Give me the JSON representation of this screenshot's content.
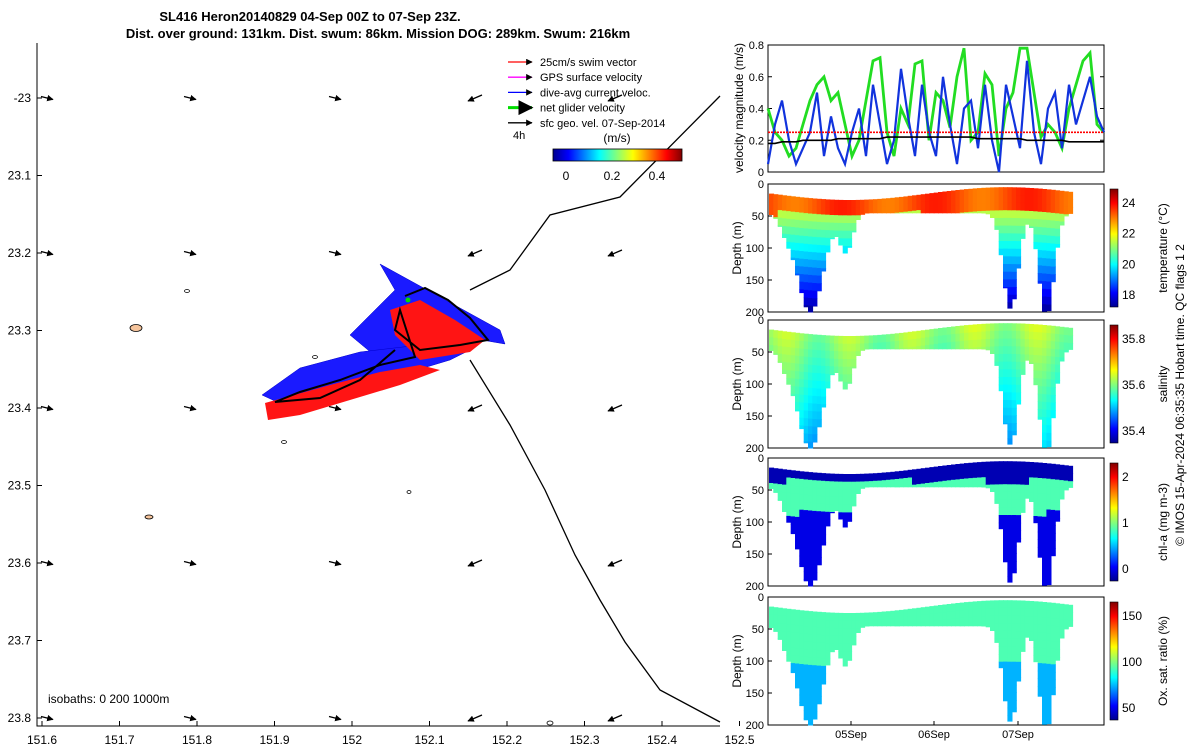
{
  "title": {
    "line1": "SL416 Heron20140829 04-Sep 00Z to 07-Sep 23Z.",
    "line2": "Dist. over ground: 131km. Dist. swum: 86km. Mission DOG: 289km. Swum: 216km"
  },
  "map": {
    "x_ticks": [
      "151.6",
      "151.7",
      "151.8",
      "151.9",
      "152",
      "152.1",
      "152.2",
      "152.3",
      "152.4",
      "152.5"
    ],
    "y_ticks": [
      "-23",
      "23.1",
      "23.2",
      "23.3",
      "23.4",
      "23.5",
      "23.6",
      "23.7",
      "23.8"
    ],
    "isobaths_label": "isobaths: 0   200  1000m",
    "legend": [
      {
        "label": "25cm/s swim vector",
        "color": "#ff0000"
      },
      {
        "label": "GPS surface velocity",
        "color": "#ff00ff"
      },
      {
        "label": "dive-avg current veloc.",
        "color": "#0000ff"
      },
      {
        "label": "net glider velocity",
        "color": "#00dd00"
      },
      {
        "label": "sfc geo. vel. 07-Sep-2014",
        "color": "#000000"
      }
    ],
    "time_step_label": "4h",
    "colorbar_label": "(m/s)",
    "colorbar_ticks": [
      "0",
      "0.2",
      "0.4"
    ]
  },
  "chart_data": [
    {
      "type": "line",
      "title": "",
      "ylabel": "velocity magnitude (m/s)",
      "ylim": [
        0,
        0.8
      ],
      "y_ticks": [
        "0",
        "0.2",
        "0.4",
        "0.6",
        "0.8"
      ],
      "series": [
        {
          "name": "net glider velocity",
          "color": "#22dd22",
          "values": [
            0.4,
            0.25,
            0.2,
            0.1,
            0.15,
            0.3,
            0.45,
            0.55,
            0.6,
            0.45,
            0.5,
            0.3,
            0.1,
            0.2,
            0.45,
            0.7,
            0.72,
            0.25,
            0.1,
            0.4,
            0.3,
            0.68,
            0.7,
            0.2,
            0.5,
            0.45,
            0.28,
            0.6,
            0.78,
            0.2,
            0.25,
            0.62,
            0.55,
            0.1,
            0.4,
            0.5,
            0.78,
            0.78,
            0.5,
            0.22,
            0.3,
            0.25,
            0.15,
            0.4,
            0.55,
            0.7,
            0.75,
            0.3,
            0.25
          ]
        },
        {
          "name": "dive-avg current veloc.",
          "color": "#1133dd",
          "values": [
            0.05,
            0.3,
            0.45,
            0.2,
            0.05,
            0.15,
            0.25,
            0.5,
            0.1,
            0.35,
            0.15,
            0.05,
            0.25,
            0.4,
            0.1,
            0.55,
            0.3,
            0.05,
            0.2,
            0.65,
            0.35,
            0.1,
            0.55,
            0.25,
            0.1,
            0.6,
            0.3,
            0.05,
            0.4,
            0.45,
            0.15,
            0.55,
            0.2,
            0.0,
            0.55,
            0.35,
            0.15,
            0.7,
            0.25,
            0.05,
            0.4,
            0.5,
            0.15,
            0.55,
            0.3,
            0.45,
            0.6,
            0.35,
            0.25
          ]
        },
        {
          "name": "25cm/s swim vector",
          "color": "#ff0000",
          "values": [
            0.25,
            0.25,
            0.25,
            0.25,
            0.25,
            0.25,
            0.25,
            0.25,
            0.25,
            0.25,
            0.25,
            0.25,
            0.25,
            0.25,
            0.25,
            0.25,
            0.25,
            0.25,
            0.25,
            0.25,
            0.25,
            0.25,
            0.25,
            0.25,
            0.25,
            0.25,
            0.25,
            0.25,
            0.25,
            0.25,
            0.25,
            0.25,
            0.25,
            0.25,
            0.25,
            0.25,
            0.25,
            0.25,
            0.25,
            0.25,
            0.25,
            0.25,
            0.25,
            0.25,
            0.25,
            0.25,
            0.25,
            0.25,
            0.25
          ]
        },
        {
          "name": "sfc geo. vel.",
          "color": "#000000",
          "values": [
            0.18,
            0.18,
            0.19,
            0.19,
            0.19,
            0.2,
            0.2,
            0.2,
            0.2,
            0.2,
            0.21,
            0.21,
            0.21,
            0.21,
            0.21,
            0.21,
            0.21,
            0.22,
            0.22,
            0.22,
            0.22,
            0.22,
            0.22,
            0.22,
            0.22,
            0.22,
            0.22,
            0.22,
            0.22,
            0.22,
            0.21,
            0.21,
            0.21,
            0.21,
            0.21,
            0.21,
            0.21,
            0.2,
            0.2,
            0.2,
            0.2,
            0.2,
            0.2,
            0.19,
            0.19,
            0.19,
            0.19,
            0.19,
            0.19
          ]
        }
      ]
    },
    {
      "type": "heatmap",
      "ylabel": "Depth (m)",
      "colorbar_label": "temperature (°C)",
      "y_ticks": [
        "0",
        "50",
        "100",
        "150",
        "200"
      ],
      "colorbar_ticks": [
        "24",
        "22",
        "20",
        "18"
      ],
      "vmin": 17,
      "vmax": 25
    },
    {
      "type": "heatmap",
      "ylabel": "Depth (m)",
      "colorbar_label": "salinity",
      "y_ticks": [
        "0",
        "50",
        "100",
        "150",
        "200"
      ],
      "colorbar_ticks": [
        "35.8",
        "35.6",
        "35.4"
      ],
      "vmin": 35.3,
      "vmax": 35.9
    },
    {
      "type": "heatmap",
      "ylabel": "Depth (m)",
      "colorbar_label": "chl-a (mg m-3)",
      "y_ticks": [
        "0",
        "50",
        "100",
        "150",
        "200"
      ],
      "colorbar_ticks": [
        "2",
        "1",
        "0"
      ],
      "vmin": 0,
      "vmax": 2
    },
    {
      "type": "heatmap",
      "ylabel": "Depth (m)",
      "colorbar_label": "Ox. sat. ratio (%)",
      "y_ticks": [
        "0",
        "50",
        "100",
        "150",
        "200"
      ],
      "colorbar_ticks": [
        "150",
        "100",
        "50"
      ],
      "vmin": 25,
      "vmax": 175,
      "x_ticks": [
        "05Sep",
        "06Sep",
        "07Sep"
      ]
    }
  ],
  "side_note": "© IMOS 15-Apr-2024 06:35:35 Hobart time. QC flags 1  2"
}
